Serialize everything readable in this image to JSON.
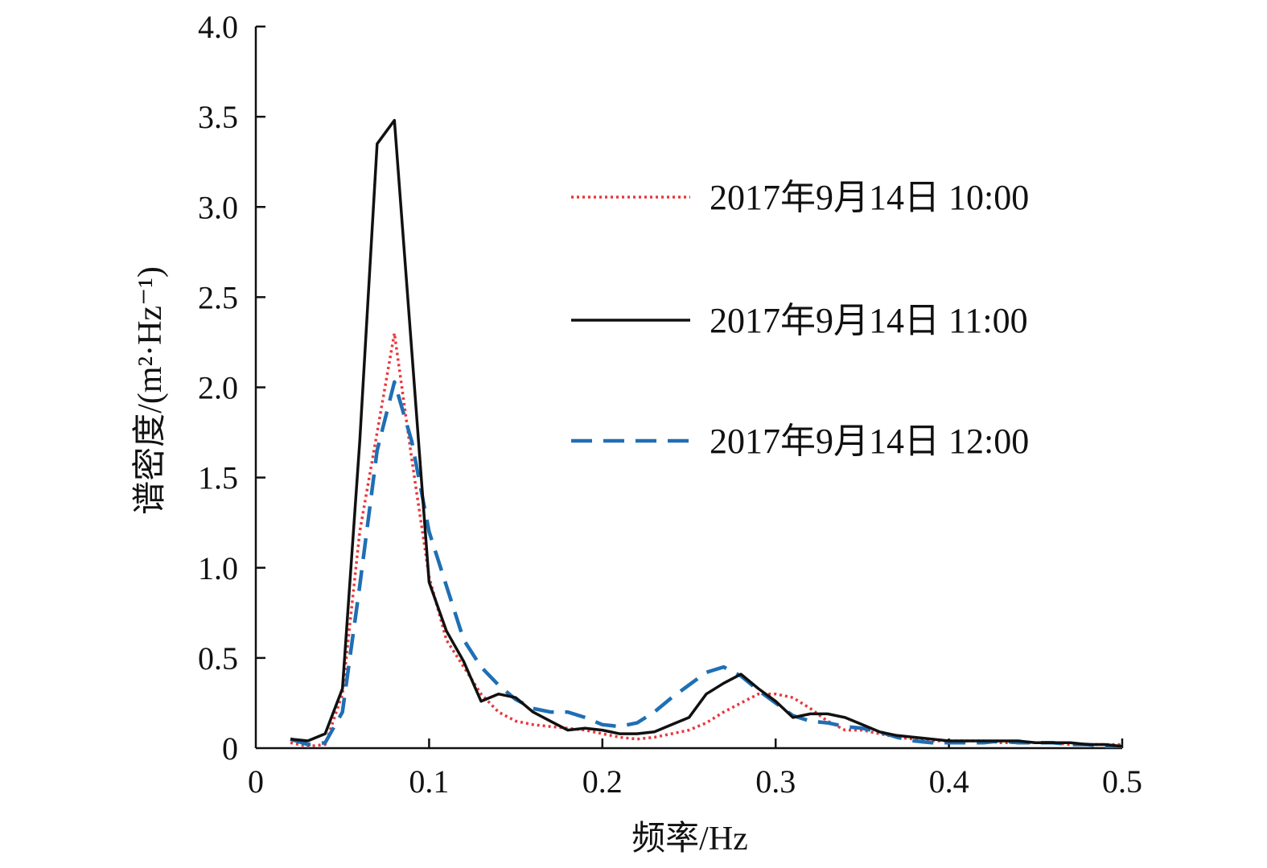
{
  "chart_data": {
    "type": "line",
    "title": "",
    "xlabel": "频率/Hz",
    "ylabel": "谱密度/(m²·Hz⁻¹)",
    "xlim": [
      0,
      0.5
    ],
    "ylim": [
      0,
      4.0
    ],
    "x_ticks": [
      "0",
      "0.1",
      "0.2",
      "0.3",
      "0.4",
      "0.5"
    ],
    "y_ticks": [
      "0",
      "0.5",
      "1.0",
      "1.5",
      "2.0",
      "2.5",
      "3.0",
      "3.5",
      "4.0"
    ],
    "grid": false,
    "legend_position": "top-right",
    "series": [
      {
        "name": "2017年9月14日 10:00",
        "color": "#e8383d",
        "style": "dotted",
        "points": [
          [
            0.02,
            0.03
          ],
          [
            0.03,
            0.01
          ],
          [
            0.04,
            0.02
          ],
          [
            0.05,
            0.3
          ],
          [
            0.06,
            1.2
          ],
          [
            0.07,
            1.75
          ],
          [
            0.08,
            2.3
          ],
          [
            0.09,
            1.6
          ],
          [
            0.1,
            0.95
          ],
          [
            0.11,
            0.6
          ],
          [
            0.12,
            0.45
          ],
          [
            0.13,
            0.3
          ],
          [
            0.14,
            0.2
          ],
          [
            0.15,
            0.15
          ],
          [
            0.16,
            0.13
          ],
          [
            0.17,
            0.12
          ],
          [
            0.18,
            0.11
          ],
          [
            0.19,
            0.1
          ],
          [
            0.2,
            0.08
          ],
          [
            0.21,
            0.06
          ],
          [
            0.22,
            0.05
          ],
          [
            0.23,
            0.06
          ],
          [
            0.24,
            0.08
          ],
          [
            0.25,
            0.1
          ],
          [
            0.26,
            0.14
          ],
          [
            0.27,
            0.2
          ],
          [
            0.28,
            0.25
          ],
          [
            0.29,
            0.3
          ],
          [
            0.3,
            0.3
          ],
          [
            0.31,
            0.28
          ],
          [
            0.32,
            0.22
          ],
          [
            0.33,
            0.15
          ],
          [
            0.34,
            0.1
          ],
          [
            0.35,
            0.1
          ],
          [
            0.36,
            0.08
          ],
          [
            0.37,
            0.06
          ],
          [
            0.38,
            0.05
          ],
          [
            0.39,
            0.04
          ],
          [
            0.4,
            0.04
          ],
          [
            0.41,
            0.04
          ],
          [
            0.42,
            0.04
          ],
          [
            0.43,
            0.03
          ],
          [
            0.44,
            0.03
          ],
          [
            0.45,
            0.03
          ],
          [
            0.46,
            0.03
          ],
          [
            0.47,
            0.02
          ],
          [
            0.48,
            0.02
          ],
          [
            0.49,
            0.02
          ],
          [
            0.5,
            0.02
          ]
        ]
      },
      {
        "name": "2017年9月14日 11:00",
        "color": "#111111",
        "style": "solid",
        "points": [
          [
            0.02,
            0.05
          ],
          [
            0.03,
            0.04
          ],
          [
            0.04,
            0.08
          ],
          [
            0.05,
            0.33
          ],
          [
            0.06,
            1.7
          ],
          [
            0.07,
            3.35
          ],
          [
            0.08,
            3.48
          ],
          [
            0.09,
            2.2
          ],
          [
            0.1,
            0.92
          ],
          [
            0.11,
            0.65
          ],
          [
            0.12,
            0.48
          ],
          [
            0.13,
            0.26
          ],
          [
            0.14,
            0.3
          ],
          [
            0.15,
            0.28
          ],
          [
            0.16,
            0.2
          ],
          [
            0.17,
            0.15
          ],
          [
            0.18,
            0.1
          ],
          [
            0.19,
            0.11
          ],
          [
            0.2,
            0.1
          ],
          [
            0.21,
            0.08
          ],
          [
            0.22,
            0.08
          ],
          [
            0.23,
            0.09
          ],
          [
            0.24,
            0.13
          ],
          [
            0.25,
            0.17
          ],
          [
            0.26,
            0.3
          ],
          [
            0.27,
            0.36
          ],
          [
            0.28,
            0.41
          ],
          [
            0.29,
            0.33
          ],
          [
            0.3,
            0.26
          ],
          [
            0.31,
            0.17
          ],
          [
            0.32,
            0.19
          ],
          [
            0.33,
            0.19
          ],
          [
            0.34,
            0.17
          ],
          [
            0.35,
            0.13
          ],
          [
            0.36,
            0.09
          ],
          [
            0.37,
            0.07
          ],
          [
            0.38,
            0.06
          ],
          [
            0.39,
            0.05
          ],
          [
            0.4,
            0.04
          ],
          [
            0.41,
            0.04
          ],
          [
            0.42,
            0.04
          ],
          [
            0.43,
            0.04
          ],
          [
            0.44,
            0.04
          ],
          [
            0.45,
            0.03
          ],
          [
            0.46,
            0.03
          ],
          [
            0.47,
            0.03
          ],
          [
            0.48,
            0.02
          ],
          [
            0.49,
            0.02
          ],
          [
            0.5,
            0.01
          ]
        ]
      },
      {
        "name": "2017年9月14日 12:00",
        "color": "#1f6fb4",
        "style": "dashed",
        "points": [
          [
            0.02,
            0.05
          ],
          [
            0.03,
            0.02
          ],
          [
            0.04,
            0.03
          ],
          [
            0.05,
            0.2
          ],
          [
            0.06,
            0.9
          ],
          [
            0.07,
            1.65
          ],
          [
            0.08,
            2.03
          ],
          [
            0.09,
            1.7
          ],
          [
            0.1,
            1.2
          ],
          [
            0.11,
            0.9
          ],
          [
            0.12,
            0.6
          ],
          [
            0.13,
            0.45
          ],
          [
            0.14,
            0.35
          ],
          [
            0.15,
            0.27
          ],
          [
            0.16,
            0.22
          ],
          [
            0.17,
            0.2
          ],
          [
            0.18,
            0.2
          ],
          [
            0.19,
            0.17
          ],
          [
            0.2,
            0.13
          ],
          [
            0.21,
            0.12
          ],
          [
            0.22,
            0.14
          ],
          [
            0.23,
            0.2
          ],
          [
            0.24,
            0.28
          ],
          [
            0.25,
            0.35
          ],
          [
            0.26,
            0.42
          ],
          [
            0.27,
            0.45
          ],
          [
            0.28,
            0.4
          ],
          [
            0.29,
            0.32
          ],
          [
            0.3,
            0.25
          ],
          [
            0.31,
            0.18
          ],
          [
            0.32,
            0.15
          ],
          [
            0.33,
            0.14
          ],
          [
            0.34,
            0.12
          ],
          [
            0.35,
            0.11
          ],
          [
            0.36,
            0.09
          ],
          [
            0.37,
            0.06
          ],
          [
            0.38,
            0.04
          ],
          [
            0.39,
            0.03
          ],
          [
            0.4,
            0.03
          ],
          [
            0.41,
            0.03
          ],
          [
            0.42,
            0.03
          ],
          [
            0.43,
            0.04
          ],
          [
            0.44,
            0.03
          ],
          [
            0.45,
            0.03
          ],
          [
            0.46,
            0.03
          ],
          [
            0.47,
            0.02
          ],
          [
            0.48,
            0.02
          ],
          [
            0.49,
            0.01
          ],
          [
            0.5,
            0.01
          ]
        ]
      }
    ]
  }
}
